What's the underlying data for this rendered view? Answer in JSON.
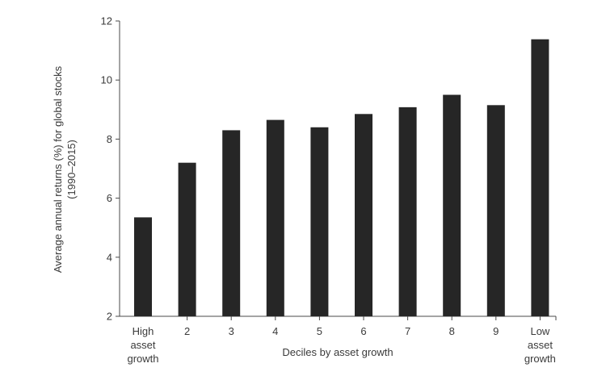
{
  "chart_data": {
    "type": "bar",
    "title": "",
    "categories": [
      [
        "High",
        "asset",
        "growth"
      ],
      [
        "2"
      ],
      [
        "3"
      ],
      [
        "4"
      ],
      [
        "5"
      ],
      [
        "6"
      ],
      [
        "7"
      ],
      [
        "8"
      ],
      [
        "9"
      ],
      [
        "Low",
        "asset",
        "growth"
      ]
    ],
    "values": [
      5.35,
      7.2,
      8.3,
      8.65,
      8.4,
      8.85,
      9.08,
      9.5,
      9.15,
      11.38
    ],
    "xlabel": "Deciles by asset growth",
    "ylabel": [
      "Average annual returns (%) for global stocks",
      "(1990–2015)"
    ],
    "ylim": [
      2,
      12
    ],
    "yticks": [
      2,
      4,
      6,
      8,
      10,
      12
    ],
    "grid": false,
    "bar_color": "#262626"
  }
}
